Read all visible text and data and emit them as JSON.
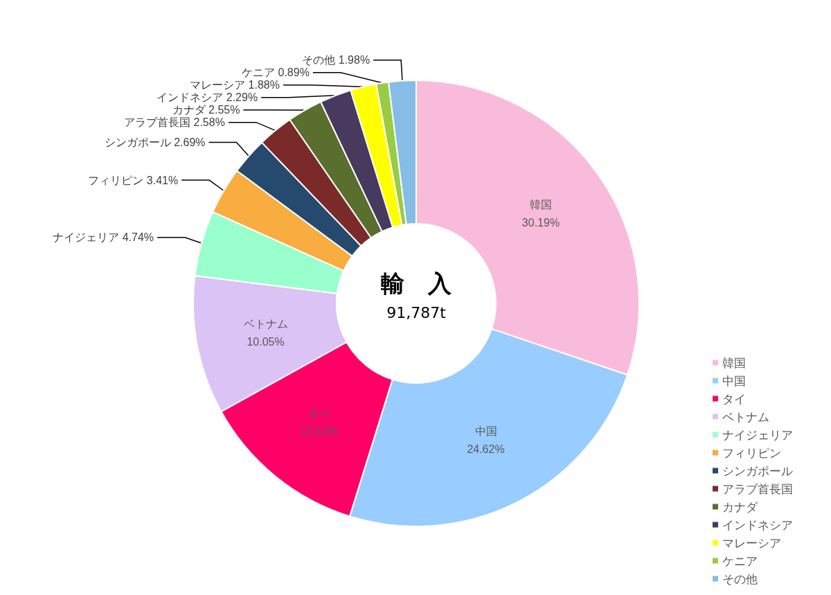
{
  "chart_data": {
    "type": "donut",
    "title": "輸　入",
    "subtitle": "91,787t",
    "categories": [
      "韓国",
      "中国",
      "タイ",
      "ベトナム",
      "ナイジェリア",
      "フィリピン",
      "シンガポール",
      "アラブ首長国",
      "カナダ",
      "インドネシア",
      "マレーシア",
      "ケニア",
      "その他"
    ],
    "values": [
      30.19,
      24.62,
      12.12,
      10.05,
      4.74,
      3.41,
      2.69,
      2.58,
      2.55,
      2.29,
      1.88,
      0.89,
      1.98
    ],
    "value_labels": [
      "30.19%",
      "24.62%",
      "12.12%",
      "10.05%",
      "4.74%",
      "3.41%",
      "2.69%",
      "2.58%",
      "2.55%",
      "2.29%",
      "1.88%",
      "0.89%",
      "1.98%"
    ],
    "colors": [
      "#f9bbdb",
      "#99ccff",
      "#ff0066",
      "#dcc3f5",
      "#99ffcc",
      "#f9ac3f",
      "#264a6e",
      "#7b2a2a",
      "#5a6e2e",
      "#48395e",
      "#ffff00",
      "#99cc44",
      "#85bde6"
    ],
    "legend": "bottom right"
  }
}
